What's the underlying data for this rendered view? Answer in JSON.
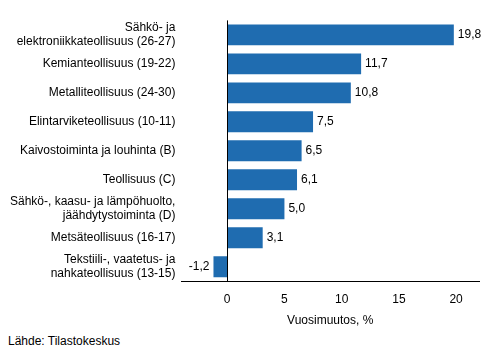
{
  "chart_data": {
    "type": "bar",
    "orientation": "horizontal",
    "categories": [
      "Sähkö- ja\nelektroniikkateollisuus (26-27)",
      "Kemianteollisuus (19-22)",
      "Metalliteollisuus (24-30)",
      "Elintarviketeollisuus (10-11)",
      "Kaivostoiminta ja louhinta (B)",
      "Teollisuus (C)",
      "Sähkö-, kaasu- ja lämpöhuolto,\njäähdytystoiminta (D)",
      "Metsäteollisuus (16-17)",
      "Tekstiili-, vaatetus- ja\nnahkateollisuus (13-15)"
    ],
    "values": [
      19.8,
      11.7,
      10.8,
      7.5,
      6.5,
      6.1,
      5.0,
      3.1,
      -1.2
    ],
    "value_labels": [
      "19,8",
      "11,7",
      "10,8",
      "7,5",
      "6,5",
      "6,1",
      "5,0",
      "3,1",
      "-1,2"
    ],
    "data_labels": true,
    "color": "#1f6cb0",
    "x_label": "Vuosimuutos, %",
    "xlim": [
      -4,
      22
    ],
    "xticks": [
      0,
      5,
      10,
      15,
      20
    ],
    "grid": false,
    "source": "Lähde: Tilastokeskus"
  }
}
